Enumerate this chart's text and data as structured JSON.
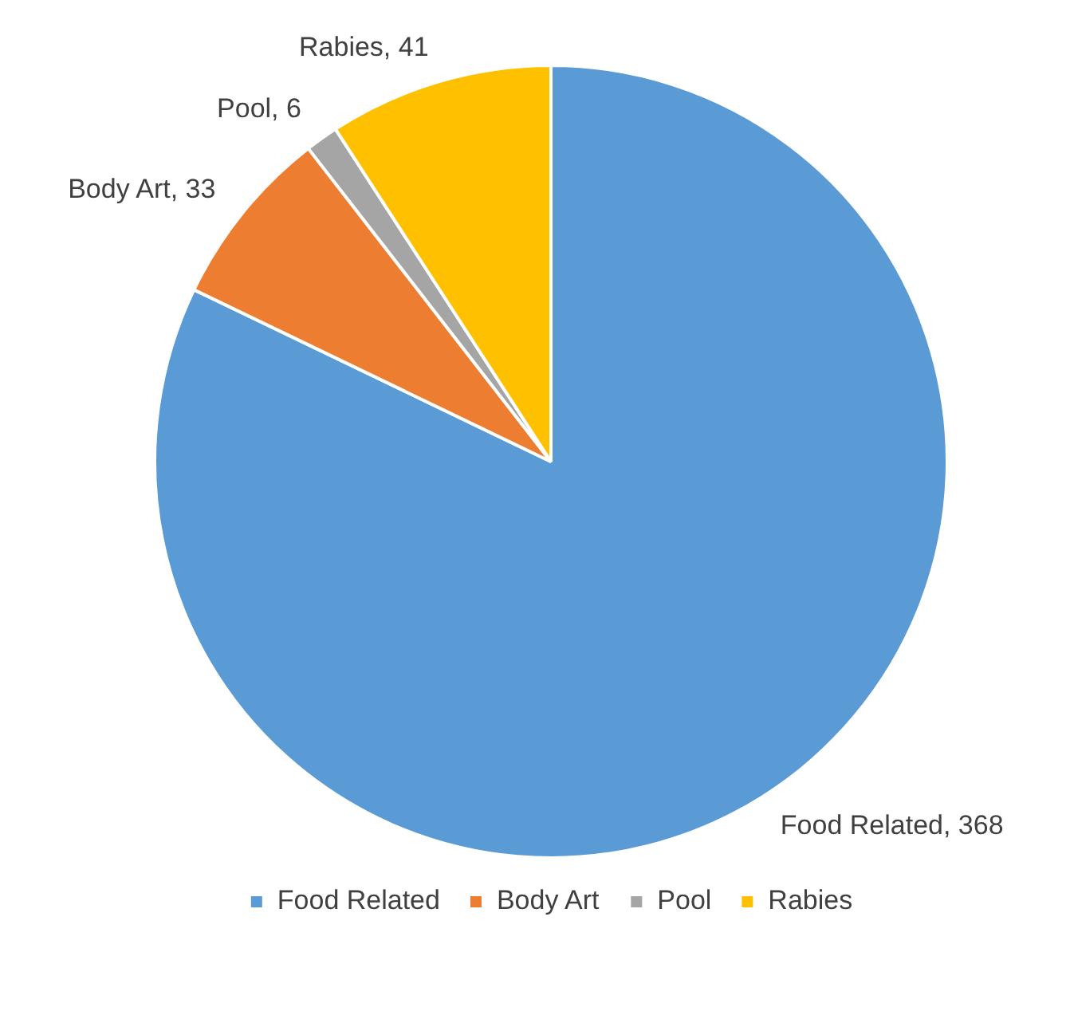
{
  "chart_data": {
    "type": "pie",
    "categories": [
      "Food Related",
      "Body Art",
      "Pool",
      "Rabies"
    ],
    "values": [
      368,
      33,
      6,
      41
    ],
    "value_labels": [
      "Food Related, 368",
      "Body Art, 33",
      "Pool, 6",
      "Rabies, 41"
    ],
    "colors": [
      "#5b9bd5",
      "#ed7d31",
      "#a5a5a5",
      "#ffc000"
    ],
    "legend": "bottom"
  }
}
